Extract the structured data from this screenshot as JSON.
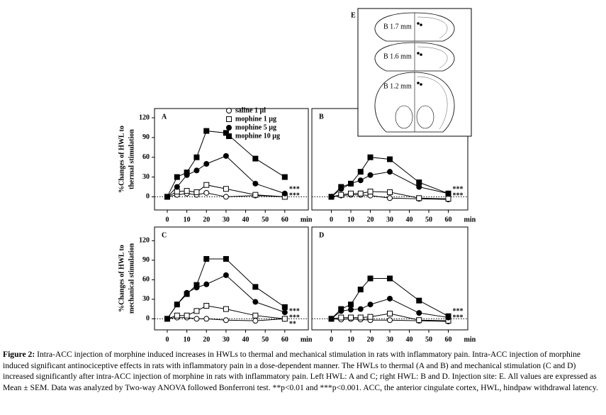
{
  "chart_data": [
    {
      "type": "line",
      "label": "A",
      "ylabel": [
        "%Changes of HWL to",
        "thermal stimulation"
      ],
      "x": [
        0,
        5,
        10,
        15,
        20,
        30,
        45,
        60
      ],
      "xlim": [
        -6.5,
        72
      ],
      "xticks": [
        0,
        10,
        20,
        30,
        40,
        50,
        60
      ],
      "xlabel": "min",
      "ylim": [
        -20,
        134
      ],
      "yticks": [
        0,
        30,
        60,
        90,
        120
      ],
      "legend": "upper center",
      "series": [
        {
          "name": "saline 1 µl",
          "color": "#000000",
          "marker": "circle",
          "filled": false,
          "values": [
            0,
            3,
            5,
            3,
            6,
            0,
            2,
            0
          ]
        },
        {
          "name": "mophine 1 µg",
          "color": "#000000",
          "marker": "square",
          "filled": false,
          "values": [
            0,
            8,
            9,
            7,
            18,
            12,
            3,
            0
          ]
        },
        {
          "name": "mophine 5 µg",
          "color": "#000000",
          "marker": "circle",
          "filled": true,
          "values": [
            0,
            15,
            33,
            40,
            50,
            62,
            20,
            5
          ]
        },
        {
          "name": "mophine 10 µg",
          "color": "#000000",
          "marker": "square",
          "filled": true,
          "values": [
            0,
            30,
            37,
            60,
            100,
            97,
            58,
            30
          ]
        }
      ],
      "annotations": [
        "***",
        "***"
      ]
    },
    {
      "type": "line",
      "label": "B",
      "x": [
        0,
        5,
        10,
        15,
        20,
        30,
        45,
        60
      ],
      "xlim": [
        -10,
        70
      ],
      "xticks": [
        0,
        10,
        20,
        30,
        40,
        50,
        60
      ],
      "xlabel": "min",
      "ylim": [
        -20,
        134
      ],
      "series": [
        {
          "color": "#000000",
          "marker": "circle",
          "filled": false,
          "values": [
            0,
            2,
            3,
            3,
            2,
            -2,
            -3,
            -4
          ]
        },
        {
          "color": "#000000",
          "marker": "square",
          "filled": false,
          "values": [
            0,
            3,
            5,
            5,
            8,
            7,
            -2,
            -3
          ]
        },
        {
          "color": "#000000",
          "marker": "circle",
          "filled": true,
          "values": [
            0,
            12,
            20,
            25,
            33,
            38,
            15,
            5
          ]
        },
        {
          "color": "#000000",
          "marker": "square",
          "filled": true,
          "values": [
            0,
            15,
            20,
            38,
            60,
            57,
            22,
            5
          ]
        }
      ],
      "annotations": [
        "***",
        "***"
      ]
    },
    {
      "type": "line",
      "label": "C",
      "ylabel": [
        "%Changes of HWL to",
        "mechanical stimulation"
      ],
      "x": [
        0,
        5,
        10,
        15,
        20,
        30,
        45,
        60
      ],
      "xlim": [
        -6.5,
        72
      ],
      "xticks": [
        0,
        10,
        20,
        30,
        40,
        50,
        60
      ],
      "xlabel": "min",
      "ylim": [
        -17,
        141
      ],
      "yticks": [
        0,
        30,
        60,
        90,
        120
      ],
      "series": [
        {
          "color": "#000000",
          "marker": "circle",
          "filled": false,
          "values": [
            0,
            2,
            2,
            0,
            0,
            -2,
            -3,
            0
          ]
        },
        {
          "color": "#000000",
          "marker": "square",
          "filled": false,
          "values": [
            0,
            5,
            5,
            12,
            20,
            15,
            5,
            0
          ]
        },
        {
          "color": "#000000",
          "marker": "circle",
          "filled": true,
          "values": [
            0,
            22,
            40,
            48,
            53,
            67,
            26,
            10
          ]
        },
        {
          "color": "#000000",
          "marker": "square",
          "filled": true,
          "values": [
            0,
            22,
            38,
            52,
            92,
            92,
            49,
            18
          ]
        }
      ],
      "annotations": [
        "***",
        "***",
        "**"
      ]
    },
    {
      "type": "line",
      "label": "D",
      "x": [
        0,
        5,
        10,
        15,
        20,
        30,
        45,
        60
      ],
      "xlim": [
        -10,
        70
      ],
      "xticks": [
        0,
        10,
        20,
        30,
        40,
        50,
        60
      ],
      "xlabel": "min",
      "ylim": [
        -17,
        141
      ],
      "series": [
        {
          "color": "#000000",
          "marker": "circle",
          "filled": false,
          "values": [
            0,
            -1,
            0,
            -1,
            -2,
            -2,
            -3,
            -4
          ]
        },
        {
          "color": "#000000",
          "marker": "square",
          "filled": false,
          "values": [
            0,
            2,
            2,
            2,
            3,
            8,
            -2,
            -3
          ]
        },
        {
          "color": "#000000",
          "marker": "circle",
          "filled": true,
          "values": [
            0,
            12,
            14,
            15,
            22,
            31,
            9,
            2
          ]
        },
        {
          "color": "#000000",
          "marker": "square",
          "filled": true,
          "values": [
            0,
            15,
            22,
            45,
            62,
            62,
            28,
            4
          ]
        }
      ],
      "annotations": [
        "***",
        "***"
      ]
    }
  ],
  "diagram": {
    "label": "E",
    "sections": [
      "B 1.7 mm",
      "B 1.6 mm",
      "B 1.2 mm"
    ]
  },
  "caption": {
    "label": "Figure 2:",
    "text": "Intra-ACC injection of morphine induced increases in HWLs to thermal and mechanical stimulation in rats with inflammatory pain. Intra-ACC injection of morphine induced significant antinociceptive effects in rats with inflammatory pain in a dose-dependent manner. The HWLs to thermal (A and B) and mechanical stimulation (C and D) increased significantly after intra-ACC injection of morphine in rats with inflammatory pain. Left HWL: A and C; right HWL: B and D. Injection site: E. All values are expressed as Mean ± SEM. Data was analyzed by Two-way ANOVA followed Bonferroni test. **p<0.01 and ***p<0.001. ACC, the anterior cingulate cortex, HWL, hindpaw withdrawal latency."
  }
}
